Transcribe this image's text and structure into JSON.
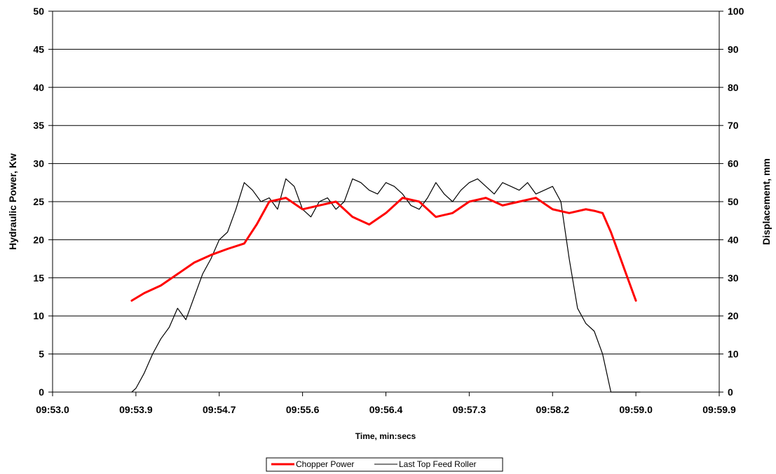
{
  "chart_data": {
    "type": "line",
    "xlabel": "Time,  min:secs",
    "ylabel": "Hydraulic Power, Kw",
    "y2label": "Displacement, mm",
    "x_ticks": [
      "09:53.0",
      "09:53.9",
      "09:54.7",
      "09:55.6",
      "09:56.4",
      "09:57.3",
      "09:58.2",
      "09:59.0",
      "09:59.9"
    ],
    "xlim": [
      0,
      8
    ],
    "ylim": [
      0,
      50
    ],
    "y_ticks": [
      0,
      5,
      10,
      15,
      20,
      25,
      30,
      35,
      40,
      45,
      50
    ],
    "y2lim": [
      0,
      100
    ],
    "y2_ticks": [
      0,
      10,
      20,
      30,
      40,
      50,
      60,
      70,
      80,
      90,
      100
    ],
    "grid": "horizontal",
    "legend_position": "bottom",
    "series": [
      {
        "name": "Chopper Power",
        "axis": "left",
        "color": "#ff0000",
        "x": [
          0.95,
          1.1,
          1.3,
          1.5,
          1.7,
          1.9,
          2.1,
          2.3,
          2.45,
          2.6,
          2.8,
          3.0,
          3.2,
          3.4,
          3.6,
          3.8,
          4.0,
          4.2,
          4.4,
          4.6,
          4.8,
          5.0,
          5.2,
          5.4,
          5.6,
          5.8,
          6.0,
          6.2,
          6.4,
          6.5,
          6.6,
          6.7,
          6.8,
          6.9,
          7.0
        ],
        "y": [
          12,
          13,
          14,
          15.5,
          17,
          18,
          18.8,
          19.5,
          22,
          25,
          25.5,
          24,
          24.5,
          25,
          23,
          22,
          23.5,
          25.5,
          25,
          23,
          23.5,
          25,
          25.5,
          24.5,
          25,
          25.5,
          24,
          23.5,
          24,
          23.8,
          23.5,
          21,
          18,
          15,
          12
        ]
      },
      {
        "name": "Last Top Feed Roller",
        "axis": "right",
        "color": "#000000",
        "x": [
          0.95,
          1.0,
          1.1,
          1.2,
          1.3,
          1.4,
          1.5,
          1.6,
          1.7,
          1.8,
          1.9,
          2.0,
          2.1,
          2.2,
          2.3,
          2.4,
          2.5,
          2.6,
          2.7,
          2.8,
          2.9,
          3.0,
          3.1,
          3.2,
          3.3,
          3.4,
          3.5,
          3.6,
          3.7,
          3.8,
          3.9,
          4.0,
          4.1,
          4.2,
          4.3,
          4.4,
          4.5,
          4.6,
          4.7,
          4.8,
          4.9,
          5.0,
          5.1,
          5.2,
          5.3,
          5.4,
          5.5,
          5.6,
          5.7,
          5.8,
          5.9,
          6.0,
          6.1,
          6.2,
          6.3,
          6.4,
          6.5,
          6.6,
          6.7,
          6.8,
          6.9,
          7.0,
          7.05
        ],
        "y": [
          0,
          1,
          5,
          10,
          14,
          17,
          22,
          19,
          25,
          31,
          35,
          40,
          42,
          48,
          55,
          53,
          50,
          51,
          48,
          56,
          54,
          48,
          46,
          50,
          51,
          48,
          50,
          56,
          55,
          53,
          52,
          55,
          54,
          52,
          49,
          48,
          51,
          55,
          52,
          50,
          53,
          55,
          56,
          54,
          52,
          55,
          54,
          53,
          55,
          52,
          53,
          54,
          50,
          35,
          22,
          18,
          16,
          10,
          0,
          0,
          0,
          0,
          0
        ]
      }
    ]
  }
}
